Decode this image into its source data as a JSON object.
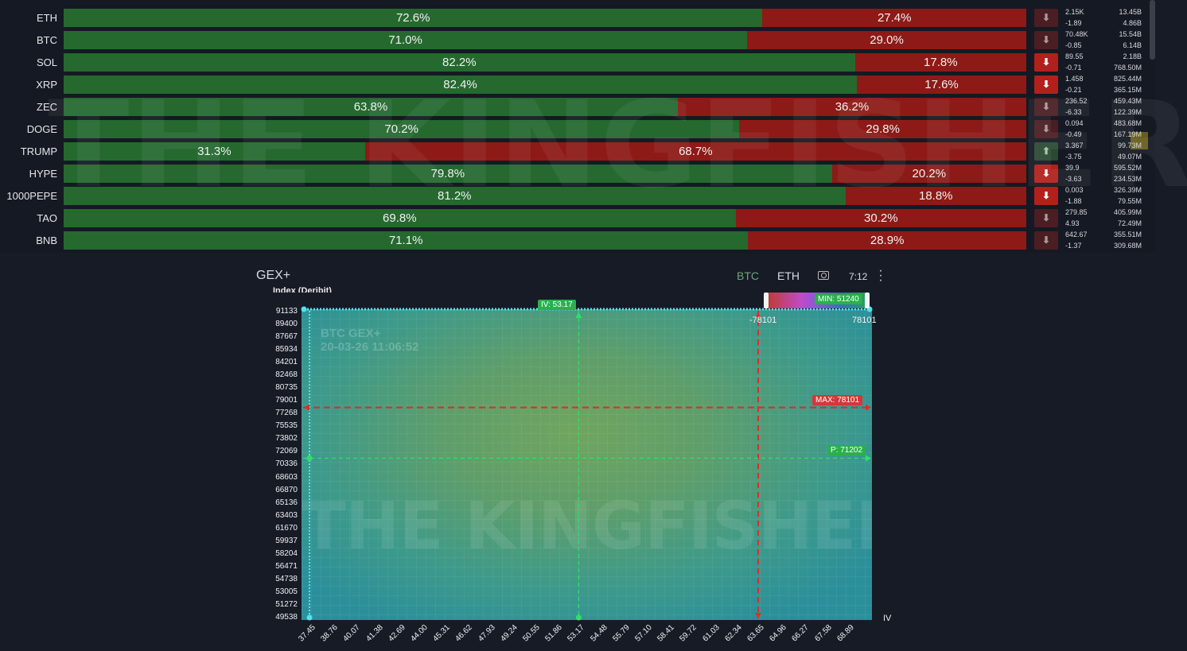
{
  "ratio_rows": [
    {
      "symbol": "ETH",
      "long_pct": "72.6%",
      "short_pct": "27.4%",
      "long": 72.6,
      "dir": "dim",
      "arrow": "⬇",
      "v1": "2.15K",
      "v2": "-1.89",
      "v3": "13.45B",
      "v4": "4.86B"
    },
    {
      "symbol": "BTC",
      "long_pct": "71.0%",
      "short_pct": "29.0%",
      "long": 71.0,
      "dir": "dim",
      "arrow": "⬇",
      "v1": "70.48K",
      "v2": "-0.85",
      "v3": "15.54B",
      "v4": "6.14B"
    },
    {
      "symbol": "SOL",
      "long_pct": "82.2%",
      "short_pct": "17.8%",
      "long": 82.2,
      "dir": "red",
      "arrow": "⬇",
      "v1": "89.55",
      "v2": "-0.71",
      "v3": "2.18B",
      "v4": "768.50M"
    },
    {
      "symbol": "XRP",
      "long_pct": "82.4%",
      "short_pct": "17.6%",
      "long": 82.4,
      "dir": "red",
      "arrow": "⬇",
      "v1": "1.458",
      "v2": "-0.21",
      "v3": "825.44M",
      "v4": "365.15M"
    },
    {
      "symbol": "ZEC",
      "long_pct": "63.8%",
      "short_pct": "36.2%",
      "long": 63.8,
      "dir": "dim",
      "arrow": "⬇",
      "v1": "236.52",
      "v2": "-6.33",
      "v3": "459.43M",
      "v4": "122.39M"
    },
    {
      "symbol": "DOGE",
      "long_pct": "70.2%",
      "short_pct": "29.8%",
      "long": 70.2,
      "dir": "dim",
      "arrow": "⬇",
      "v1": "0.094",
      "v2": "-0.49",
      "v3": "483.68M",
      "v4": "167.19M"
    },
    {
      "symbol": "TRUMP",
      "long_pct": "31.3%",
      "short_pct": "68.7%",
      "long": 31.3,
      "dir": "green",
      "arrow": "⬆",
      "v1": "3.367",
      "v2": "-3.75",
      "v3": "99.73M",
      "v4": "49.07M"
    },
    {
      "symbol": "HYPE",
      "long_pct": "79.8%",
      "short_pct": "20.2%",
      "long": 79.8,
      "dir": "red",
      "arrow": "⬇",
      "v1": "39.9",
      "v2": "-3.63",
      "v3": "595.52M",
      "v4": "234.53M"
    },
    {
      "symbol": "1000PEPE",
      "long_pct": "81.2%",
      "short_pct": "18.8%",
      "long": 81.2,
      "dir": "red",
      "arrow": "⬇",
      "v1": "0.003",
      "v2": "-1.88",
      "v3": "326.39M",
      "v4": "79.55M"
    },
    {
      "symbol": "TAO",
      "long_pct": "69.8%",
      "short_pct": "30.2%",
      "long": 69.8,
      "dir": "dim",
      "arrow": "⬇",
      "v1": "279.85",
      "v2": "4.93",
      "v3": "405.99M",
      "v4": "72.49M"
    },
    {
      "symbol": "BNB",
      "long_pct": "71.1%",
      "short_pct": "28.9%",
      "long": 71.1,
      "dir": "dim",
      "arrow": "⬇",
      "v1": "642.67",
      "v2": "-1.37",
      "v3": "355.51M",
      "v4": "309.68M"
    }
  ],
  "watermark": "THE KINGFISHER",
  "gex": {
    "title": "GEX+",
    "tabs": [
      "BTC",
      "ETH"
    ],
    "time": "7:12",
    "index_label": "Index (Deribit)",
    "caption_line1": "BTC GEX+",
    "caption_line2": "20-03-26 11:06:52",
    "iv_tag": "IV: 53.17",
    "min_tag": "MIN: 51240",
    "max_tag": "MAX: 78101",
    "p_tag": "P: 71202",
    "neg_range": "-78101",
    "pos_range": "78101",
    "x_end_label": "IV"
  },
  "chart_data": {
    "type": "heatmap",
    "title": "BTC GEX+",
    "xlabel": "IV",
    "ylabel": "Index (Deribit)",
    "yticks": [
      "91133",
      "89400",
      "87667",
      "85934",
      "84201",
      "82468",
      "80735",
      "79001",
      "77268",
      "75535",
      "73802",
      "72069",
      "70336",
      "68603",
      "66870",
      "65136",
      "63403",
      "61670",
      "59937",
      "58204",
      "56471",
      "54738",
      "53005",
      "51272",
      "49538"
    ],
    "xticks": [
      "37.45",
      "38.76",
      "40.07",
      "41.38",
      "42.69",
      "44.00",
      "45.31",
      "46.62",
      "47.93",
      "49.24",
      "50.55",
      "51.86",
      "53.17",
      "54.48",
      "55.79",
      "57.10",
      "58.41",
      "59.72",
      "61.03",
      "62.34",
      "63.65",
      "64.96",
      "66.27",
      "67.58",
      "68.89"
    ],
    "xlim": [
      37.45,
      70.2
    ],
    "ylim": [
      49538,
      91133
    ],
    "lines": {
      "iv": 53.17,
      "max": 78101,
      "p": 71202,
      "vertical_red": 63.65
    },
    "colorbar_range": [
      -78101,
      78101
    ]
  }
}
